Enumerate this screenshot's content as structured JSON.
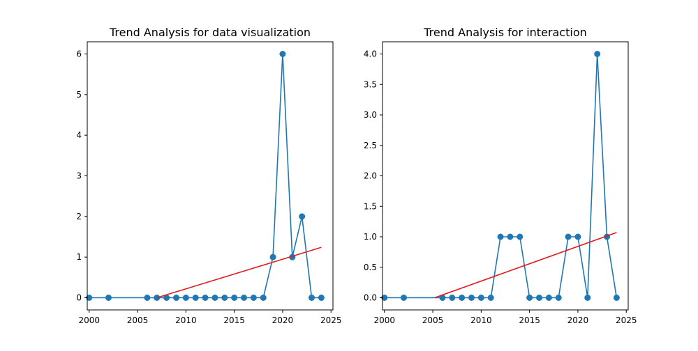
{
  "chart_data": [
    {
      "type": "line",
      "title": "Trend Analysis for data visualization",
      "xlabel": "",
      "ylabel": "",
      "xlim": [
        1999.8,
        2025.2
      ],
      "ylim": [
        -0.3,
        6.3
      ],
      "xticks": [
        2000,
        2005,
        2010,
        2015,
        2020,
        2025
      ],
      "yticks": [
        0,
        1,
        2,
        3,
        4,
        5,
        6
      ],
      "ytick_labels": [
        "0",
        "1",
        "2",
        "3",
        "4",
        "5",
        "6"
      ],
      "grid": false,
      "series": [
        {
          "type": "line-markers",
          "color": "#1f77b4",
          "x": [
            2000,
            2002,
            2006,
            2007,
            2008,
            2009,
            2010,
            2011,
            2012,
            2013,
            2014,
            2015,
            2016,
            2017,
            2018,
            2019,
            2020,
            2021,
            2022,
            2023,
            2024
          ],
          "y": [
            0,
            0,
            0,
            0,
            0,
            0,
            0,
            0,
            0,
            0,
            0,
            0,
            0,
            0,
            0,
            1,
            6,
            1,
            2,
            0,
            0
          ]
        },
        {
          "type": "trend-line",
          "color": "#e31a1c",
          "x": [
            2007,
            2024
          ],
          "y": [
            0,
            1.24
          ]
        }
      ]
    },
    {
      "type": "line",
      "title": "Trend Analysis for interaction",
      "xlabel": "",
      "ylabel": "",
      "xlim": [
        1999.8,
        2025.2
      ],
      "ylim": [
        -0.2,
        4.2
      ],
      "xticks": [
        2000,
        2005,
        2010,
        2015,
        2020,
        2025
      ],
      "yticks": [
        0,
        0.5,
        1.0,
        1.5,
        2.0,
        2.5,
        3.0,
        3.5,
        4.0
      ],
      "ytick_labels": [
        "0.0",
        "0.5",
        "1.0",
        "1.5",
        "2.0",
        "2.5",
        "3.0",
        "3.5",
        "4.0"
      ],
      "grid": false,
      "series": [
        {
          "type": "line-markers",
          "color": "#1f77b4",
          "x": [
            2000,
            2002,
            2006,
            2007,
            2008,
            2009,
            2010,
            2011,
            2012,
            2013,
            2014,
            2015,
            2016,
            2017,
            2018,
            2019,
            2020,
            2021,
            2022,
            2023,
            2024
          ],
          "y": [
            0,
            0,
            0,
            0,
            0,
            0,
            0,
            0,
            1,
            1,
            1,
            0,
            0,
            0,
            0,
            1,
            1,
            0,
            4,
            1,
            0
          ]
        },
        {
          "type": "trend-line",
          "color": "#e31a1c",
          "x": [
            2005.2,
            2024
          ],
          "y": [
            0,
            1.07
          ]
        }
      ]
    }
  ]
}
